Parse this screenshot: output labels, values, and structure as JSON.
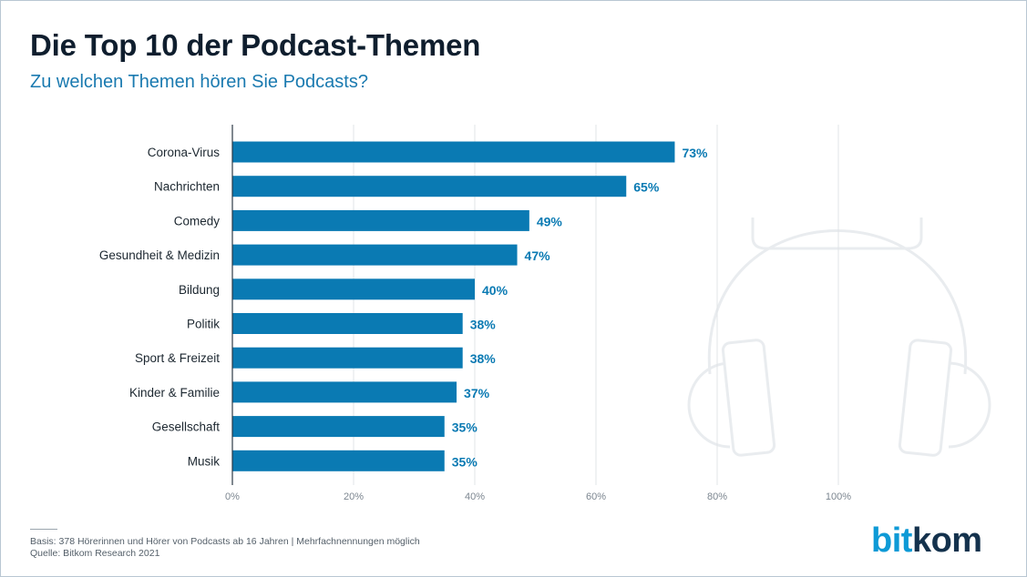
{
  "title": "Die Top 10 der Podcast-Themen",
  "subtitle": "Zu welchen Themen hören Sie Podcasts?",
  "footnote": {
    "basis": "Basis: 378 Hörerinnen und Hörer von Podcasts ab 16 Jahren | Mehrfachnennungen möglich",
    "source": "Quelle: Bitkom Research 2021"
  },
  "logo": {
    "part1": "bit",
    "part2": "kom"
  },
  "colors": {
    "bar": "#0a7ab3",
    "value_label": "#0a7ab3",
    "grid": "#e1e4e7",
    "axis": "#2d3a45",
    "category_label": "#1c2730",
    "tick_label": "#7c8690",
    "headphones_icon": "#e9ecef"
  },
  "chart_data": {
    "type": "bar",
    "orientation": "horizontal",
    "categories": [
      "Corona-Virus",
      "Nachrichten",
      "Comedy",
      "Gesundheit & Medizin",
      "Bildung",
      "Politik",
      "Sport & Freizeit",
      "Kinder & Familie",
      "Gesellschaft",
      "Musik"
    ],
    "values": [
      73,
      65,
      49,
      47,
      40,
      38,
      38,
      37,
      35,
      35
    ],
    "value_labels": [
      "73%",
      "65%",
      "49%",
      "47%",
      "40%",
      "38%",
      "38%",
      "37%",
      "35%",
      "35%"
    ],
    "xlim": [
      0,
      100
    ],
    "x_ticks": [
      0,
      20,
      40,
      60,
      80,
      100
    ],
    "x_tick_labels": [
      "0%",
      "20%",
      "40%",
      "60%",
      "80%",
      "100%"
    ],
    "grid": true,
    "legend": false,
    "decoration": "headphones-icon"
  }
}
